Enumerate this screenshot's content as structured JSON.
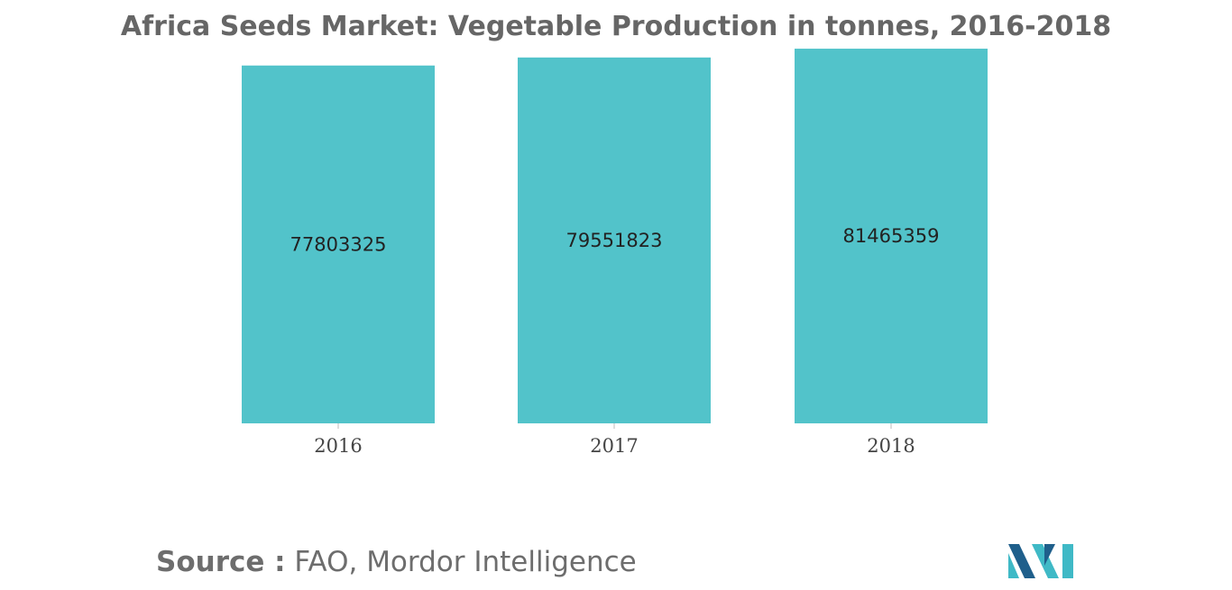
{
  "title": "Africa Seeds Market: Vegetable Production in tonnes, 2016-2018",
  "source": {
    "prefix": "Source :",
    "text": " FAO, Mordor Intelligence"
  },
  "colors": {
    "bar": "#52c3ca",
    "logo_dark": "#1f5f8b",
    "logo_light": "#3fb9c6"
  },
  "logo": {
    "icon": "mordor-intelligence-logo-icon"
  },
  "chart_data": {
    "type": "bar",
    "title": "Africa Seeds Market: Vegetable Production in tonnes, 2016-2018",
    "categories": [
      "2016",
      "2017",
      "2018"
    ],
    "values": [
      77803325,
      79551823,
      81465359
    ],
    "data_labels": [
      "77803325",
      "79551823",
      "81465359"
    ],
    "xlabel": "",
    "ylabel": "",
    "ylim": [
      0,
      85000000
    ],
    "grid": false,
    "legend": "none"
  }
}
